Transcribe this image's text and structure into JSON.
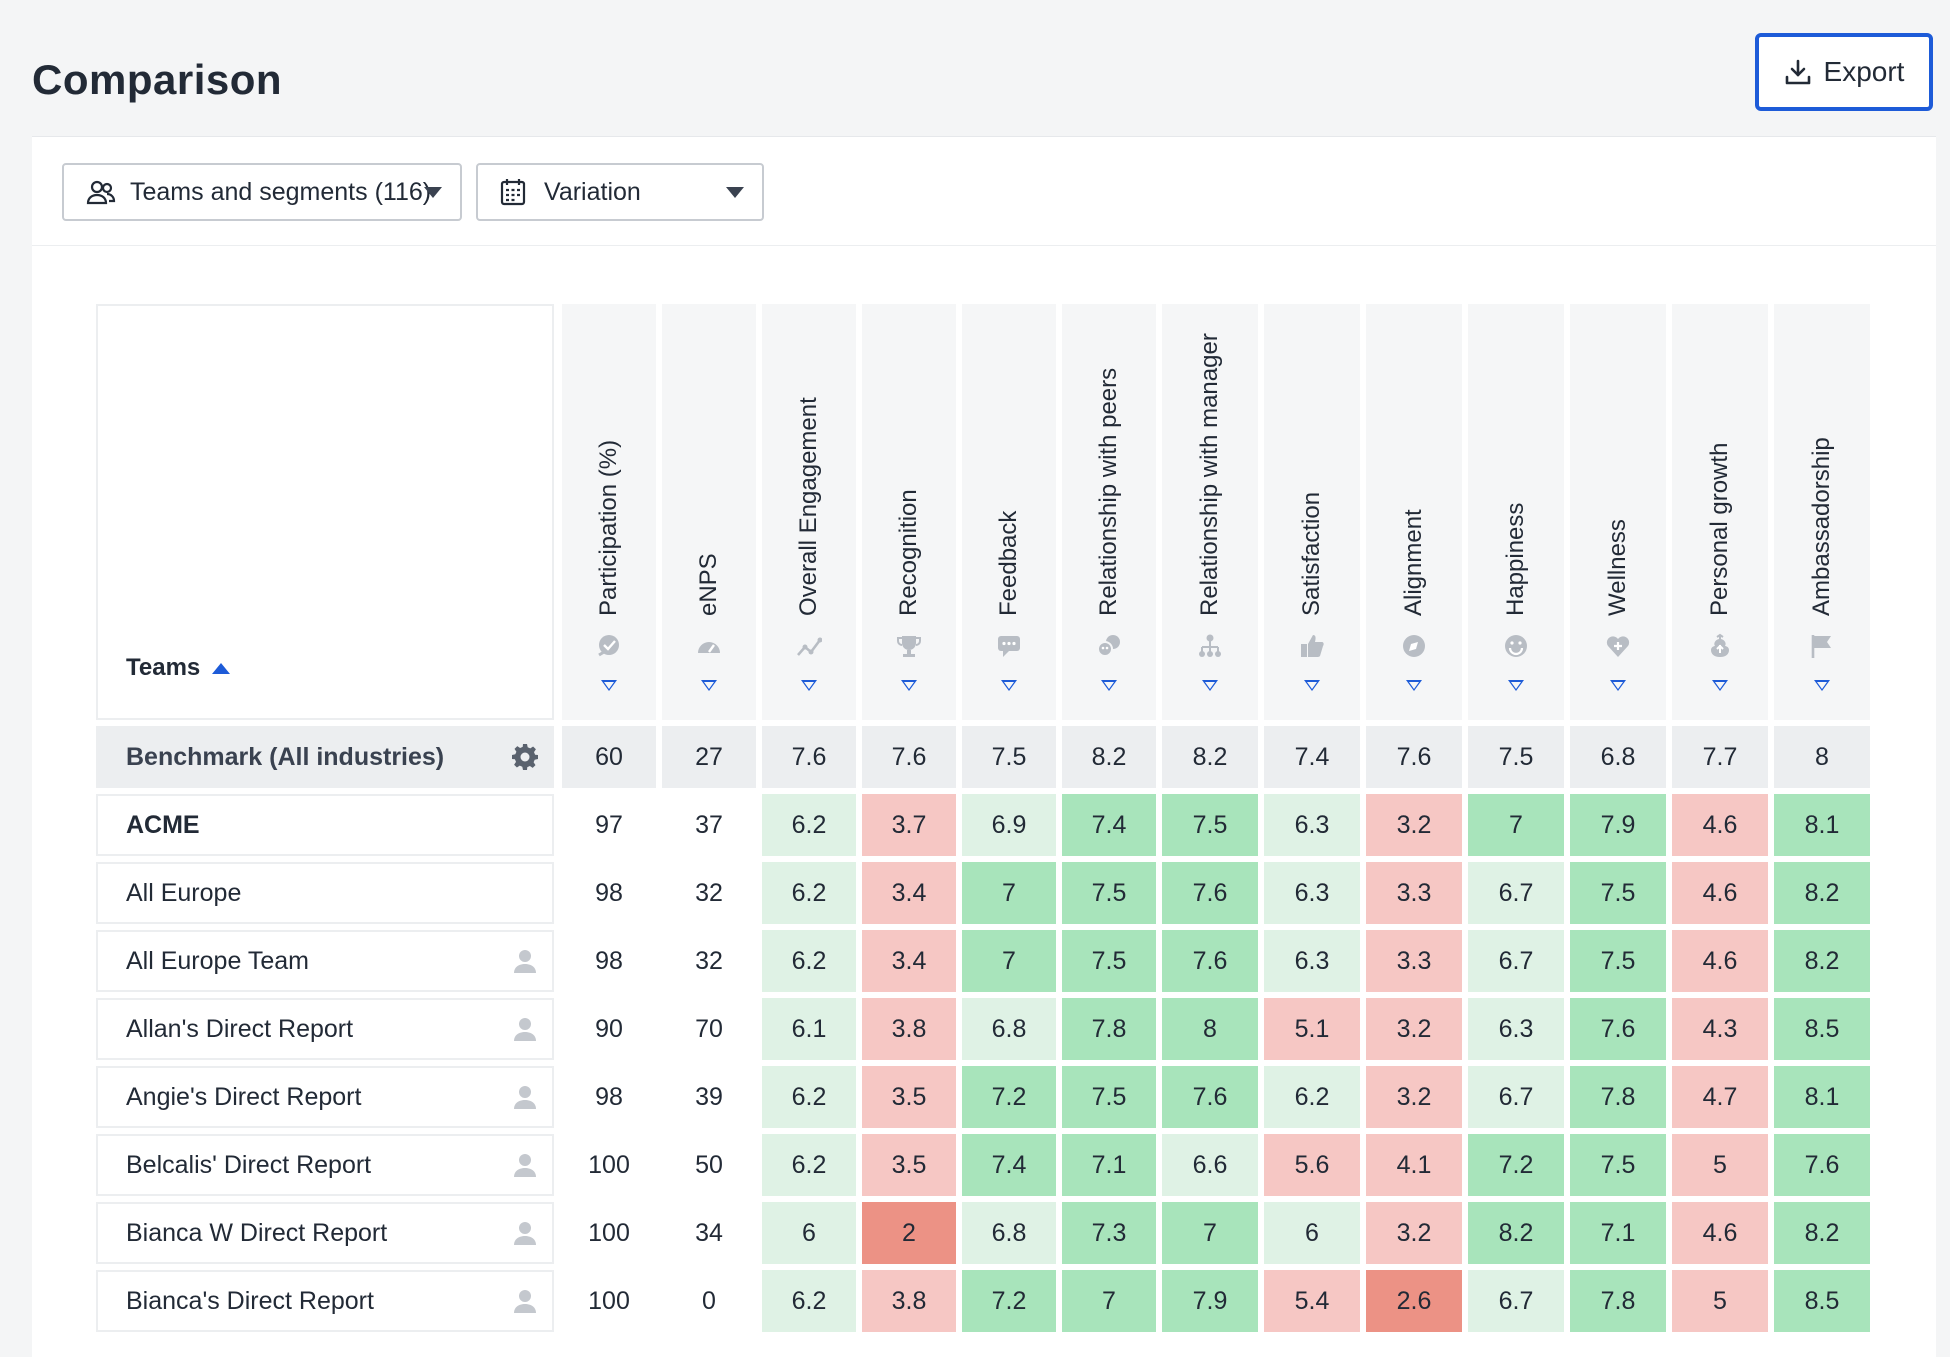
{
  "page": {
    "title": "Comparison",
    "export_label": "Export"
  },
  "filters": {
    "teams_select": {
      "value": "Teams and segments (116)",
      "icon": "users-icon"
    },
    "variation_select": {
      "value": "Variation",
      "icon": "calendar-icon"
    }
  },
  "table": {
    "teams_header": "Teams",
    "columns": [
      {
        "label": "Participation (%)",
        "icon": "check-bubble-icon"
      },
      {
        "label": "eNPS",
        "icon": "gauge-icon"
      },
      {
        "label": "Overall Engagement",
        "icon": "trend-icon"
      },
      {
        "label": "Recognition",
        "icon": "trophy-icon"
      },
      {
        "label": "Feedback",
        "icon": "chat-icon"
      },
      {
        "label": "Relationship with peers",
        "icon": "peers-icon"
      },
      {
        "label": "Relationship with manager",
        "icon": "hierarchy-icon"
      },
      {
        "label": "Satisfaction",
        "icon": "thumbs-up-icon"
      },
      {
        "label": "Alignment",
        "icon": "compass-icon"
      },
      {
        "label": "Happiness",
        "icon": "smile-icon"
      },
      {
        "label": "Wellness",
        "icon": "heart-plus-icon"
      },
      {
        "label": "Personal growth",
        "icon": "growth-icon"
      },
      {
        "label": "Ambassadorship",
        "icon": "flag-icon"
      }
    ],
    "rows": [
      {
        "name": "Benchmark (All industries)",
        "type": "benchmark",
        "icon": "gear-icon",
        "values": [
          "60",
          "27",
          "7.6",
          "7.6",
          "7.5",
          "8.2",
          "8.2",
          "7.4",
          "7.6",
          "7.5",
          "6.8",
          "7.7",
          "8"
        ]
      },
      {
        "name": "ACME",
        "type": "org",
        "icon": "",
        "values": [
          "97",
          "37",
          "6.2",
          "3.7",
          "6.9",
          "7.4",
          "7.5",
          "6.3",
          "3.2",
          "7",
          "7.9",
          "4.6",
          "8.1"
        ]
      },
      {
        "name": "All Europe",
        "type": "segment",
        "icon": "",
        "values": [
          "98",
          "32",
          "6.2",
          "3.4",
          "7",
          "7.5",
          "7.6",
          "6.3",
          "3.3",
          "6.7",
          "7.5",
          "4.6",
          "8.2"
        ]
      },
      {
        "name": "All Europe Team",
        "type": "team",
        "icon": "person-icon",
        "values": [
          "98",
          "32",
          "6.2",
          "3.4",
          "7",
          "7.5",
          "7.6",
          "6.3",
          "3.3",
          "6.7",
          "7.5",
          "4.6",
          "8.2"
        ]
      },
      {
        "name": "Allan's Direct Report",
        "type": "team",
        "icon": "person-icon",
        "values": [
          "90",
          "70",
          "6.1",
          "3.8",
          "6.8",
          "7.8",
          "8",
          "5.1",
          "3.2",
          "6.3",
          "7.6",
          "4.3",
          "8.5"
        ]
      },
      {
        "name": "Angie's Direct Report",
        "type": "team",
        "icon": "person-icon",
        "values": [
          "98",
          "39",
          "6.2",
          "3.5",
          "7.2",
          "7.5",
          "7.6",
          "6.2",
          "3.2",
          "6.7",
          "7.8",
          "4.7",
          "8.1"
        ]
      },
      {
        "name": "Belcalis' Direct Report",
        "type": "team",
        "icon": "person-icon",
        "values": [
          "100",
          "50",
          "6.2",
          "3.5",
          "7.4",
          "7.1",
          "6.6",
          "5.6",
          "4.1",
          "7.2",
          "7.5",
          "5",
          "7.6"
        ]
      },
      {
        "name": "Bianca W Direct Report",
        "type": "team",
        "icon": "person-icon",
        "values": [
          "100",
          "34",
          "6",
          "2",
          "6.8",
          "7.3",
          "7",
          "6",
          "3.2",
          "8.2",
          "7.1",
          "4.6",
          "8.2"
        ]
      },
      {
        "name": "Bianca's Direct Report",
        "type": "team",
        "icon": "person-icon",
        "values": [
          "100",
          "0",
          "6.2",
          "3.8",
          "7.2",
          "7",
          "7.9",
          "5.4",
          "2.6",
          "6.7",
          "7.8",
          "5",
          "8.5"
        ]
      }
    ]
  },
  "colors": {
    "accent": "#1d5bd8",
    "high": "#a8e4bb",
    "mid_high": "#dff2e5",
    "mid_low": "#f6c7c4",
    "low": "#ec9285",
    "neutral": "#eceef0"
  }
}
